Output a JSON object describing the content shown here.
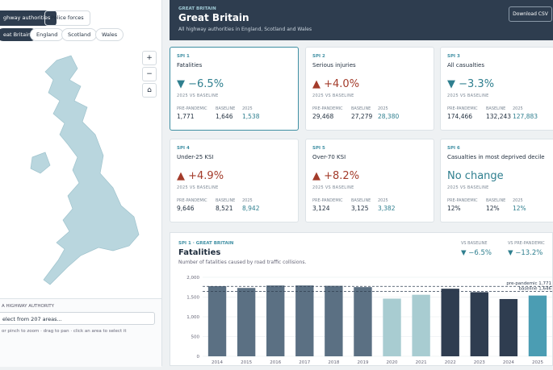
{
  "sidebar": {
    "tabs": [
      "ghway authorities",
      "Police forces"
    ],
    "active_tab": 0,
    "nations": [
      "eat Britain",
      "England",
      "Scotland",
      "Wales"
    ],
    "active_nation": 0,
    "map_controls": [
      "+",
      "−",
      "⌂"
    ],
    "select_label": "A HIGHWAY AUTHORITY",
    "select_placeholder": "elect from 207 areas...",
    "hint": "or pinch to zoom · drag to pan · click an area to select it"
  },
  "header": {
    "eyebrow": "GREAT BRITAIN",
    "title": "Great Britain",
    "subtitle": "All highway authorities in England, Scotland and Wales",
    "button": "Download CSV"
  },
  "cards": [
    {
      "id": "SPI 1",
      "name": "Fatalities",
      "change": "▼ −6.5%",
      "direction": "down",
      "selected": true,
      "caption": "2025 VS BASELINE",
      "stats": [
        {
          "label": "PRE-PANDEMIC",
          "value": "1,771"
        },
        {
          "label": "BASELINE",
          "value": "1,646"
        },
        {
          "label": "2025",
          "value": "1,538"
        }
      ]
    },
    {
      "id": "SPI 2",
      "name": "Serious injuries",
      "change": "▲ +4.0%",
      "direction": "up",
      "selected": false,
      "caption": "2025 VS BASELINE",
      "stats": [
        {
          "label": "PRE-PANDEMIC",
          "value": "29,468"
        },
        {
          "label": "BASELINE",
          "value": "27,279"
        },
        {
          "label": "2025",
          "value": "28,380"
        }
      ]
    },
    {
      "id": "SPI 3",
      "name": "All casualties",
      "change": "▼ −3.3%",
      "direction": "down",
      "selected": false,
      "caption": "2025 VS BASELINE",
      "stats": [
        {
          "label": "PRE-PANDEMIC",
          "value": "174,466"
        },
        {
          "label": "BASELINE",
          "value": "132,243"
        },
        {
          "label": "2025",
          "value": "127,883"
        }
      ]
    },
    {
      "id": "SPI 4",
      "name": "Under-25 KSI",
      "change": "▲ +4.9%",
      "direction": "up",
      "selected": false,
      "caption": "2025 VS BASELINE",
      "stats": [
        {
          "label": "PRE-PANDEMIC",
          "value": "9,646"
        },
        {
          "label": "BASELINE",
          "value": "8,521"
        },
        {
          "label": "2025",
          "value": "8,942"
        }
      ]
    },
    {
      "id": "SPI 5",
      "name": "Over-70 KSI",
      "change": "▲ +8.2%",
      "direction": "up",
      "selected": false,
      "caption": "2025 VS BASELINE",
      "stats": [
        {
          "label": "PRE-PANDEMIC",
          "value": "3,124"
        },
        {
          "label": "BASELINE",
          "value": "3,125"
        },
        {
          "label": "2025",
          "value": "3,382"
        }
      ]
    },
    {
      "id": "SPI 6",
      "name": "Casualties in most deprived decile",
      "change": "No change",
      "direction": "none",
      "selected": false,
      "caption": "2025 VS BASELINE",
      "stats": [
        {
          "label": "PRE-PANDEMIC",
          "value": "12%"
        },
        {
          "label": "BASELINE",
          "value": "12%"
        },
        {
          "label": "2025",
          "value": "12%"
        }
      ]
    }
  ],
  "chart": {
    "type": "bar",
    "eyebrow": "SPI 1 · GREAT BRITAIN",
    "title": "Fatalities",
    "subtitle": "Number of fatalities caused by road traffic collisions.",
    "summary": [
      {
        "label": "VS BASELINE",
        "value": "▼ −6.5%"
      },
      {
        "label": "VS PRE-PANDEMIC",
        "value": "▼ −13.2%"
      }
    ],
    "categories": [
      "2014",
      "2015",
      "2016",
      "2017",
      "2018",
      "2019",
      "2020",
      "2021",
      "2022",
      "2023",
      "2024",
      "2025"
    ],
    "values": [
      1775,
      1730,
      1792,
      1793,
      1784,
      1752,
      1460,
      1558,
      1711,
      1624,
      1450,
      1538
    ],
    "colors": [
      "#5b7083",
      "#5b7083",
      "#5b7083",
      "#5b7083",
      "#5b7083",
      "#5b7083",
      "#a8ccd1",
      "#a8ccd1",
      "#2f3d50",
      "#2f3d50",
      "#2f3d50",
      "#4b9db3"
    ],
    "reference_lines": [
      {
        "label": "pre-pandemic 1,771",
        "value": 1771
      },
      {
        "label": "baseline 1,646",
        "value": 1646
      }
    ],
    "ylim": [
      0,
      2000
    ],
    "yticks": [
      0,
      500,
      {
        "value": 1000,
        "label": "1,000"
      },
      {
        "value": 1500,
        "label": "1,500"
      },
      {
        "value": 2000,
        "label": "2,000"
      }
    ],
    "grid": true
  }
}
